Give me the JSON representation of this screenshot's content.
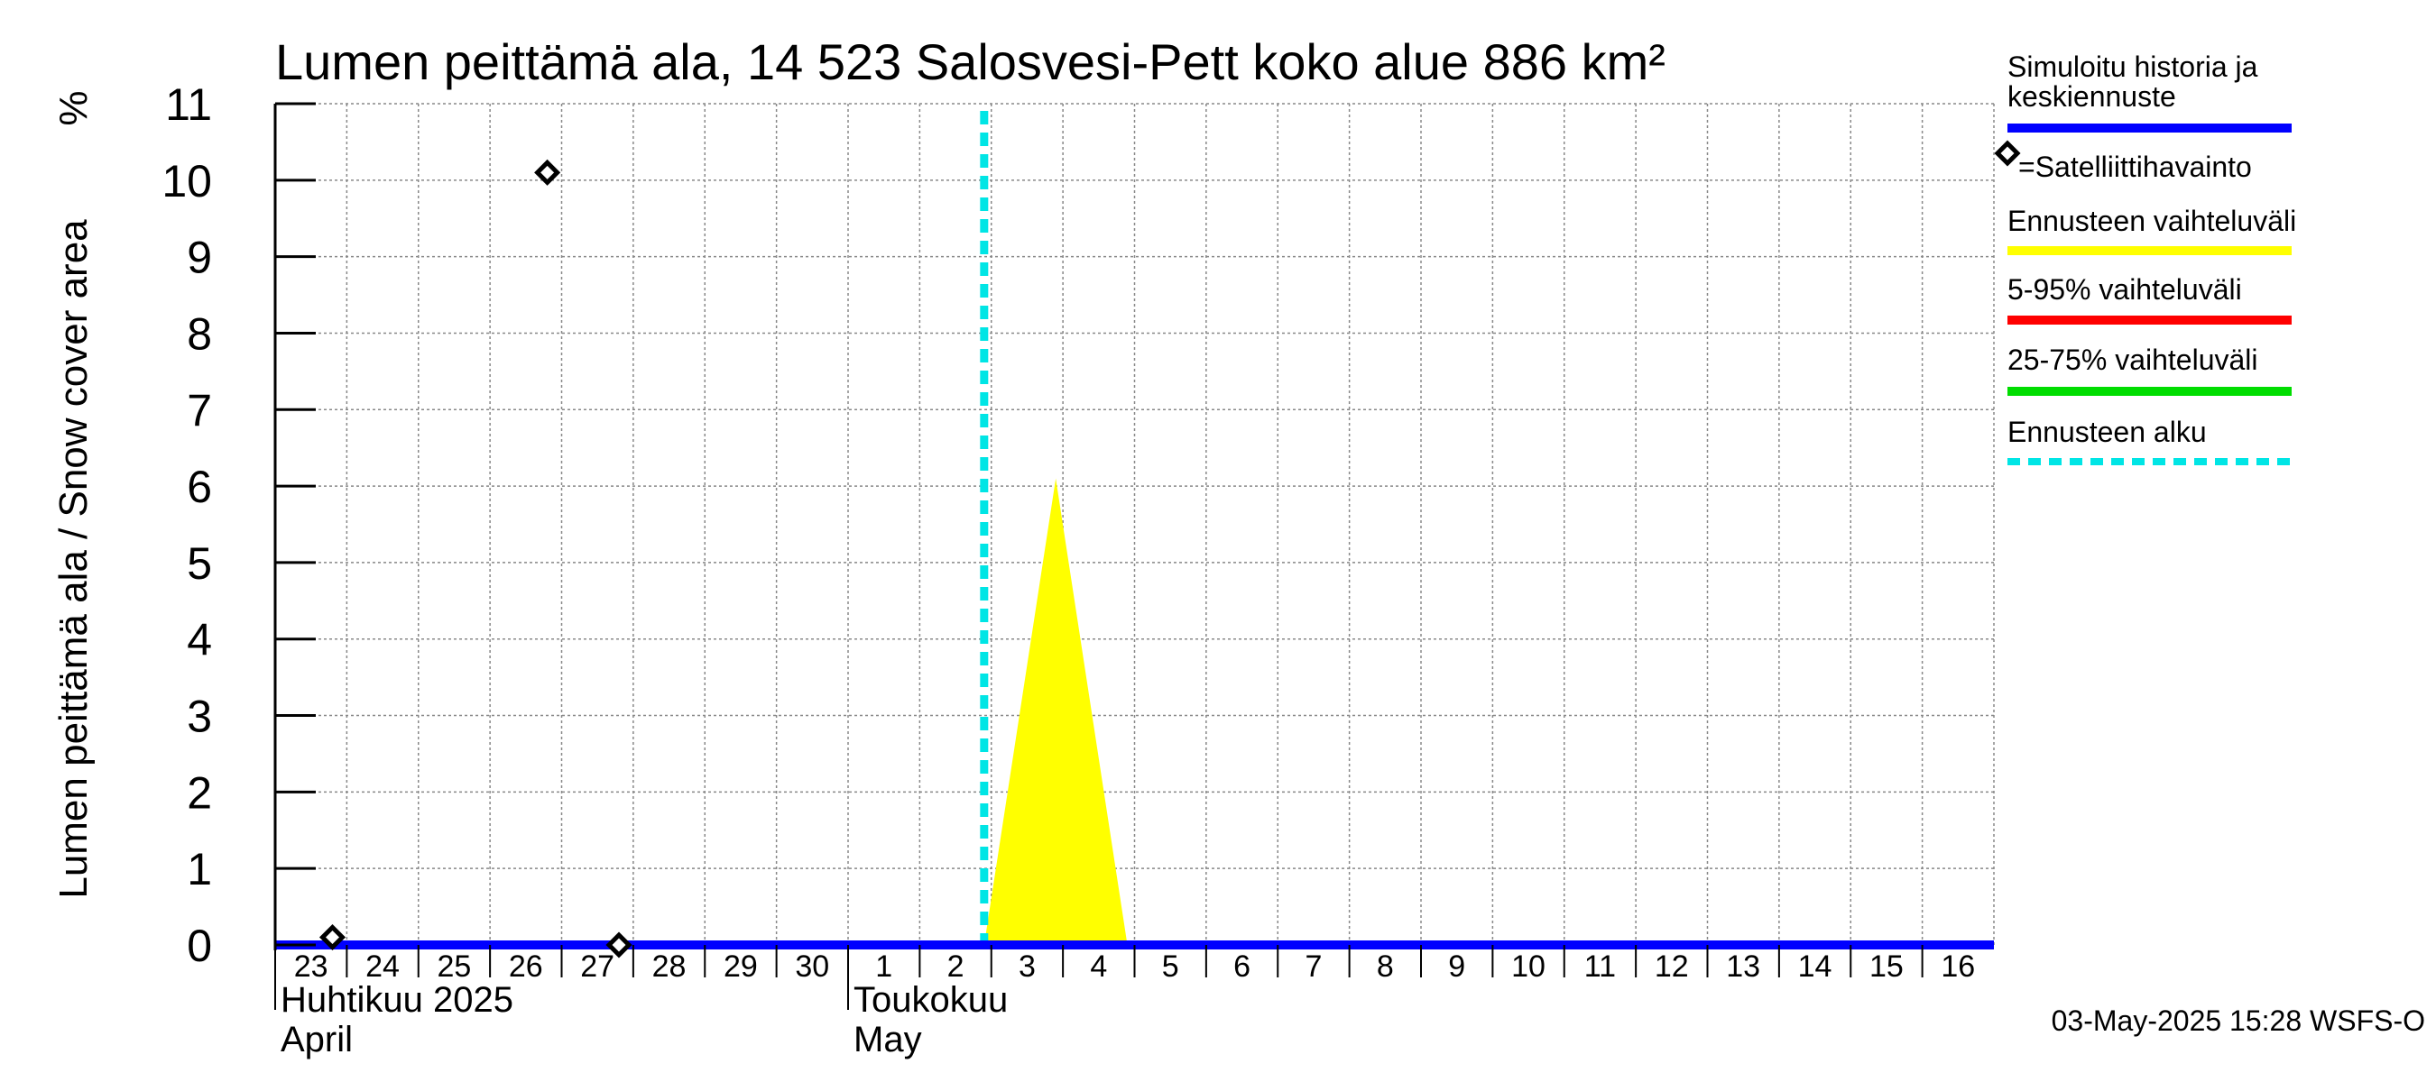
{
  "chart_data": {
    "type": "area",
    "title": "Lumen peittämä ala, 14 523 Salosvesi-Pett koko alue 886 km²",
    "ylabel": "Lumen peittämä ala / Snow cover area",
    "yunit": "%",
    "ylim": [
      0,
      11
    ],
    "yticks": [
      0,
      1,
      2,
      3,
      4,
      5,
      6,
      7,
      8,
      9,
      10,
      11
    ],
    "grid": true,
    "x_range_days": [
      23,
      47
    ],
    "x_ticks": [
      {
        "day": 23,
        "label": "23"
      },
      {
        "day": 24,
        "label": "24"
      },
      {
        "day": 25,
        "label": "25"
      },
      {
        "day": 26,
        "label": "26"
      },
      {
        "day": 27,
        "label": "27"
      },
      {
        "day": 28,
        "label": "28"
      },
      {
        "day": 29,
        "label": "29"
      },
      {
        "day": 30,
        "label": "30"
      },
      {
        "day": 31,
        "label": "1"
      },
      {
        "day": 32,
        "label": "2"
      },
      {
        "day": 33,
        "label": "3"
      },
      {
        "day": 34,
        "label": "4"
      },
      {
        "day": 35,
        "label": "5"
      },
      {
        "day": 36,
        "label": "6"
      },
      {
        "day": 37,
        "label": "7"
      },
      {
        "day": 38,
        "label": "8"
      },
      {
        "day": 39,
        "label": "9"
      },
      {
        "day": 40,
        "label": "10"
      },
      {
        "day": 41,
        "label": "11"
      },
      {
        "day": 42,
        "label": "12"
      },
      {
        "day": 43,
        "label": "13"
      },
      {
        "day": 44,
        "label": "14"
      },
      {
        "day": 45,
        "label": "15"
      },
      {
        "day": 46,
        "label": "16"
      }
    ],
    "months": [
      {
        "day": 23,
        "line1": "Huhtikuu  2025",
        "line2": "April"
      },
      {
        "day": 31,
        "line1": "Toukokuu",
        "line2": "May"
      }
    ],
    "forecast_start_day": 32.9,
    "series": [
      {
        "name": "Simuloitu historia ja keskiennuste",
        "color": "#0000ff",
        "points": [
          [
            23,
            0
          ],
          [
            47,
            0
          ]
        ]
      },
      {
        "name": "Ennusteen vaihteluväli",
        "color": "#ffff00",
        "points": [
          [
            32.9,
            0
          ],
          [
            33.9,
            6.1
          ],
          [
            34.9,
            0
          ]
        ]
      }
    ],
    "observations": [
      {
        "day": 23.8,
        "value": 0.1
      },
      {
        "day": 26.8,
        "value": 10.1
      },
      {
        "day": 27.8,
        "value": 0
      }
    ],
    "legend": [
      {
        "label": "Simuloitu historia ja keskiennuste",
        "kind": "line",
        "color": "#0000ff"
      },
      {
        "label": "=Satelliittihavainto",
        "kind": "marker",
        "color": "#000000"
      },
      {
        "label": "Ennusteen vaihteluväli",
        "kind": "line",
        "color": "#ffff00"
      },
      {
        "label": "5-95% vaihteluväli",
        "kind": "line",
        "color": "#ff0000"
      },
      {
        "label": "25-75% vaihteluväli",
        "kind": "line",
        "color": "#00dd00"
      },
      {
        "label": "Ennusteen alku",
        "kind": "dashed",
        "color": "#00e5e5"
      }
    ],
    "footer": "03-May-2025 15:28 WSFS-O"
  }
}
